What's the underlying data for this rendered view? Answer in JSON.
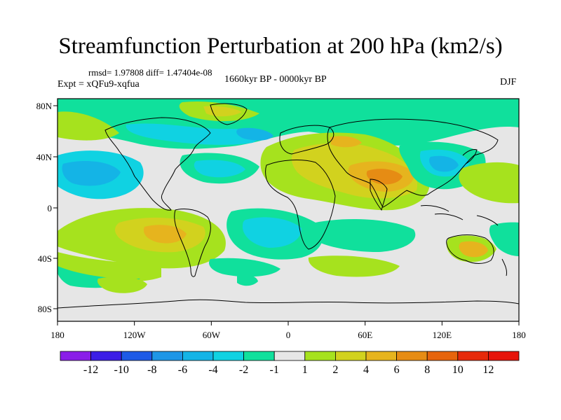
{
  "header": {
    "title": "Streamfunction Perturbation at 200 hPa (km2/s)",
    "stats": "rmsd= 1.97808 diff= 1.47404e-08",
    "experiment": "Expt = xQFu9-xqfua",
    "period": "1660kyr BP - 0000kyr BP",
    "season": "DJF"
  },
  "map": {
    "lat_ticks": [
      "80N",
      "40N",
      "0",
      "40S",
      "80S"
    ],
    "lon_ticks": [
      "180",
      "120W",
      "60W",
      "0",
      "60E",
      "120E",
      "180"
    ],
    "background_color": "#e6e6e6"
  },
  "colorbar": {
    "labels": [
      "-12",
      "-10",
      "-8",
      "-6",
      "-4",
      "-2",
      "-1",
      "1",
      "2",
      "4",
      "6",
      "8",
      "10",
      "12"
    ],
    "colors": [
      "#8a1ee8",
      "#3c1ee6",
      "#1e5ae6",
      "#1e96e6",
      "#14b4e6",
      "#10d2e2",
      "#10e09c",
      "#e6e6e6",
      "#a6e21e",
      "#d2d21e",
      "#e6b41e",
      "#e68c14",
      "#e6640c",
      "#e62a0a",
      "#e6140a"
    ]
  }
}
